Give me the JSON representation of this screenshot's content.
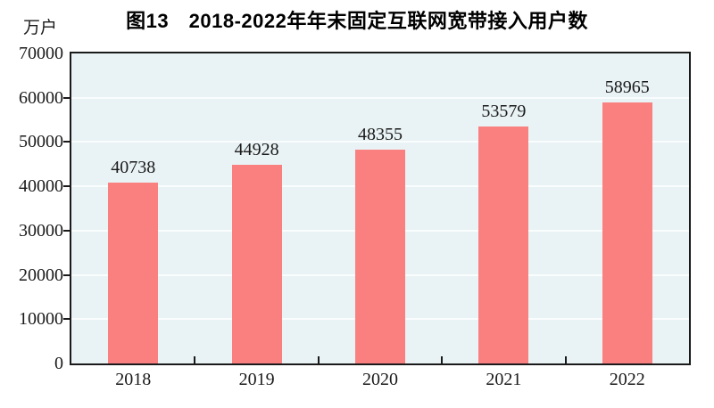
{
  "title": "图13　2018-2022年年末固定互联网宽带接入用户数",
  "unit_label": "万户",
  "colors": {
    "bar": "#FA8080",
    "plot_background": "#E9F2F4",
    "gridline": "#FAFDFD",
    "axis": "#1A1A1A",
    "page_background": "#FFFFFF"
  },
  "chart_data": {
    "type": "bar",
    "title": "图13　2018-2022年年末固定互联网宽带接入用户数",
    "categories": [
      "2018",
      "2019",
      "2020",
      "2021",
      "2022"
    ],
    "values": [
      40738,
      44928,
      48355,
      53579,
      58965
    ],
    "data_labels": [
      40738,
      44928,
      48355,
      53579,
      58965
    ],
    "xlabel": "",
    "ylabel": "万户",
    "ylim": [
      0,
      70000
    ],
    "ytick_step": 10000,
    "ytick_labels": [
      "0",
      "10000",
      "20000",
      "30000",
      "40000",
      "50000",
      "60000",
      "70000"
    ],
    "grid": true,
    "legend_position": "none"
  }
}
